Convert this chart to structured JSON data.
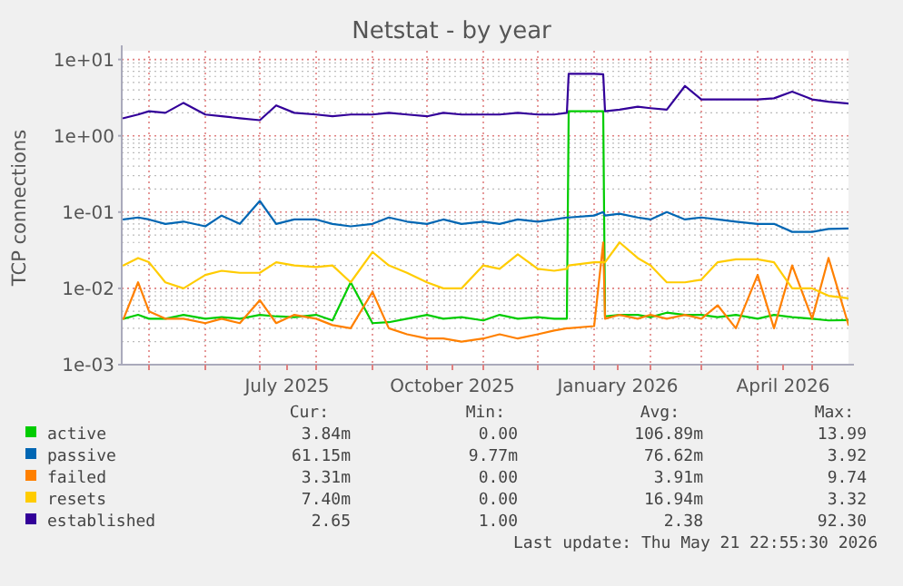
{
  "chart_data": {
    "type": "line",
    "title": "Netstat - by year",
    "ylabel": "TCP connections",
    "log": "y",
    "grid": true,
    "legend": "bottom",
    "marker": "none",
    "line_style": "solid",
    "xlim": [
      "2025-04-16",
      "2026-05-21"
    ],
    "xticks": [
      {
        "value": "2025-05-01",
        "label": null
      },
      {
        "value": "2025-06-01",
        "label": null
      },
      {
        "value": "2025-07-01",
        "label": null
      },
      {
        "value": "2025-07-16",
        "label": "July 2025"
      },
      {
        "value": "2025-08-01",
        "label": null
      },
      {
        "value": "2025-09-01",
        "label": null
      },
      {
        "value": "2025-10-01",
        "label": null
      },
      {
        "value": "2025-10-15",
        "label": "October 2025"
      },
      {
        "value": "2025-11-01",
        "label": null
      },
      {
        "value": "2025-12-01",
        "label": null
      },
      {
        "value": "2026-01-01",
        "label": null
      },
      {
        "value": "2026-01-14",
        "label": "January 2026"
      },
      {
        "value": "2026-02-01",
        "label": null
      },
      {
        "value": "2026-03-01",
        "label": null
      },
      {
        "value": "2026-04-01",
        "label": null
      },
      {
        "value": "2026-04-15",
        "label": "April 2026"
      },
      {
        "value": "2026-05-01",
        "label": null
      }
    ],
    "ylim": [
      0.001,
      13
    ],
    "yticks": [
      {
        "value": 0.001,
        "label": "1e-03"
      },
      {
        "value": 0.01,
        "label": "1e-02"
      },
      {
        "value": 0.1,
        "label": "1e-01"
      },
      {
        "value": 1,
        "label": "1e+00"
      },
      {
        "value": 10,
        "label": "1e+01"
      }
    ],
    "x": [
      "2025-04-17",
      "2025-04-25",
      "2025-05-01",
      "2025-05-10",
      "2025-05-20",
      "2025-06-01",
      "2025-06-10",
      "2025-06-20",
      "2025-07-01",
      "2025-07-10",
      "2025-07-20",
      "2025-08-01",
      "2025-08-10",
      "2025-08-20",
      "2025-09-01",
      "2025-09-10",
      "2025-09-20",
      "2025-10-01",
      "2025-10-10",
      "2025-10-20",
      "2025-11-01",
      "2025-11-10",
      "2025-11-20",
      "2025-12-01",
      "2025-12-10",
      "2025-12-17",
      "2025-12-18",
      "2026-01-01",
      "2026-01-06",
      "2026-01-07",
      "2026-01-15",
      "2026-01-25",
      "2026-02-01",
      "2026-02-10",
      "2026-02-20",
      "2026-03-01",
      "2026-03-10",
      "2026-03-20",
      "2026-04-01",
      "2026-04-10",
      "2026-04-20",
      "2026-05-01",
      "2026-05-10",
      "2026-05-21"
    ],
    "series": [
      {
        "name": "active",
        "color": "#00cc00",
        "values": [
          0.004,
          0.0045,
          0.004,
          0.004,
          0.0045,
          0.004,
          0.0042,
          0.004,
          0.0045,
          0.0043,
          0.0042,
          0.0045,
          0.0038,
          0.012,
          0.0035,
          0.0036,
          0.004,
          0.0045,
          0.004,
          0.0042,
          0.0038,
          0.0045,
          0.004,
          0.0042,
          0.004,
          0.004,
          2.1,
          2.1,
          2.1,
          0.0043,
          0.0045,
          0.0045,
          0.0042,
          0.0048,
          0.0045,
          0.0045,
          0.0042,
          0.0045,
          0.004,
          0.0045,
          0.0042,
          0.004,
          0.0038,
          0.00384
        ]
      },
      {
        "name": "passive",
        "color": "#0066b3",
        "values": [
          0.08,
          0.085,
          0.08,
          0.07,
          0.075,
          0.065,
          0.09,
          0.07,
          0.14,
          0.07,
          0.08,
          0.08,
          0.07,
          0.065,
          0.07,
          0.085,
          0.075,
          0.07,
          0.08,
          0.07,
          0.075,
          0.07,
          0.08,
          0.075,
          0.08,
          0.085,
          0.085,
          0.09,
          0.1,
          0.09,
          0.095,
          0.085,
          0.08,
          0.1,
          0.08,
          0.085,
          0.08,
          0.075,
          0.07,
          0.07,
          0.055,
          0.055,
          0.06,
          0.061
        ]
      },
      {
        "name": "failed",
        "color": "#ff8000",
        "values": [
          0.004,
          0.012,
          0.005,
          0.004,
          0.004,
          0.0035,
          0.004,
          0.0035,
          0.007,
          0.0035,
          0.0045,
          0.004,
          0.0033,
          0.003,
          0.009,
          0.003,
          0.0025,
          0.0022,
          0.0022,
          0.002,
          0.0022,
          0.0025,
          0.0022,
          0.0025,
          0.0028,
          0.003,
          0.003,
          0.0032,
          0.04,
          0.004,
          0.0045,
          0.004,
          0.0045,
          0.004,
          0.0045,
          0.004,
          0.006,
          0.003,
          0.015,
          0.003,
          0.02,
          0.004,
          0.025,
          0.00331
        ]
      },
      {
        "name": "resets",
        "color": "#ffcc00",
        "values": [
          0.02,
          0.025,
          0.022,
          0.012,
          0.01,
          0.015,
          0.017,
          0.016,
          0.016,
          0.022,
          0.02,
          0.019,
          0.02,
          0.012,
          0.03,
          0.02,
          0.016,
          0.012,
          0.01,
          0.01,
          0.02,
          0.018,
          0.028,
          0.018,
          0.017,
          0.018,
          0.02,
          0.022,
          0.022,
          0.022,
          0.04,
          0.025,
          0.02,
          0.012,
          0.012,
          0.013,
          0.022,
          0.024,
          0.024,
          0.022,
          0.01,
          0.01,
          0.008,
          0.0074
        ]
      },
      {
        "name": "established",
        "color": "#330099",
        "values": [
          1.7,
          1.9,
          2.1,
          2.0,
          2.7,
          1.9,
          1.8,
          1.7,
          1.6,
          2.5,
          2.0,
          1.9,
          1.8,
          1.9,
          1.9,
          2.0,
          1.9,
          1.8,
          2.0,
          1.9,
          1.9,
          1.9,
          2.0,
          1.9,
          1.9,
          2.0,
          6.5,
          6.5,
          6.4,
          2.1,
          2.2,
          2.4,
          2.3,
          2.2,
          4.5,
          3.0,
          3.0,
          3.0,
          3.0,
          3.1,
          3.8,
          3.0,
          2.8,
          2.65
        ]
      }
    ],
    "annotations": [
      "Cur:",
      "Min:",
      "Avg:",
      "Max:",
      "3.84m",
      "0.00",
      "106.89m",
      "13.99",
      "61.15m",
      "9.77m",
      "76.62m",
      "3.92",
      "3.31m",
      "0.00",
      "3.91m",
      "9.74",
      "7.40m",
      "0.00",
      "16.94m",
      "3.32",
      "2.65",
      "1.00",
      "2.38",
      "92.30",
      "Last update: Thu May 21 22:55:30 2026"
    ]
  }
}
